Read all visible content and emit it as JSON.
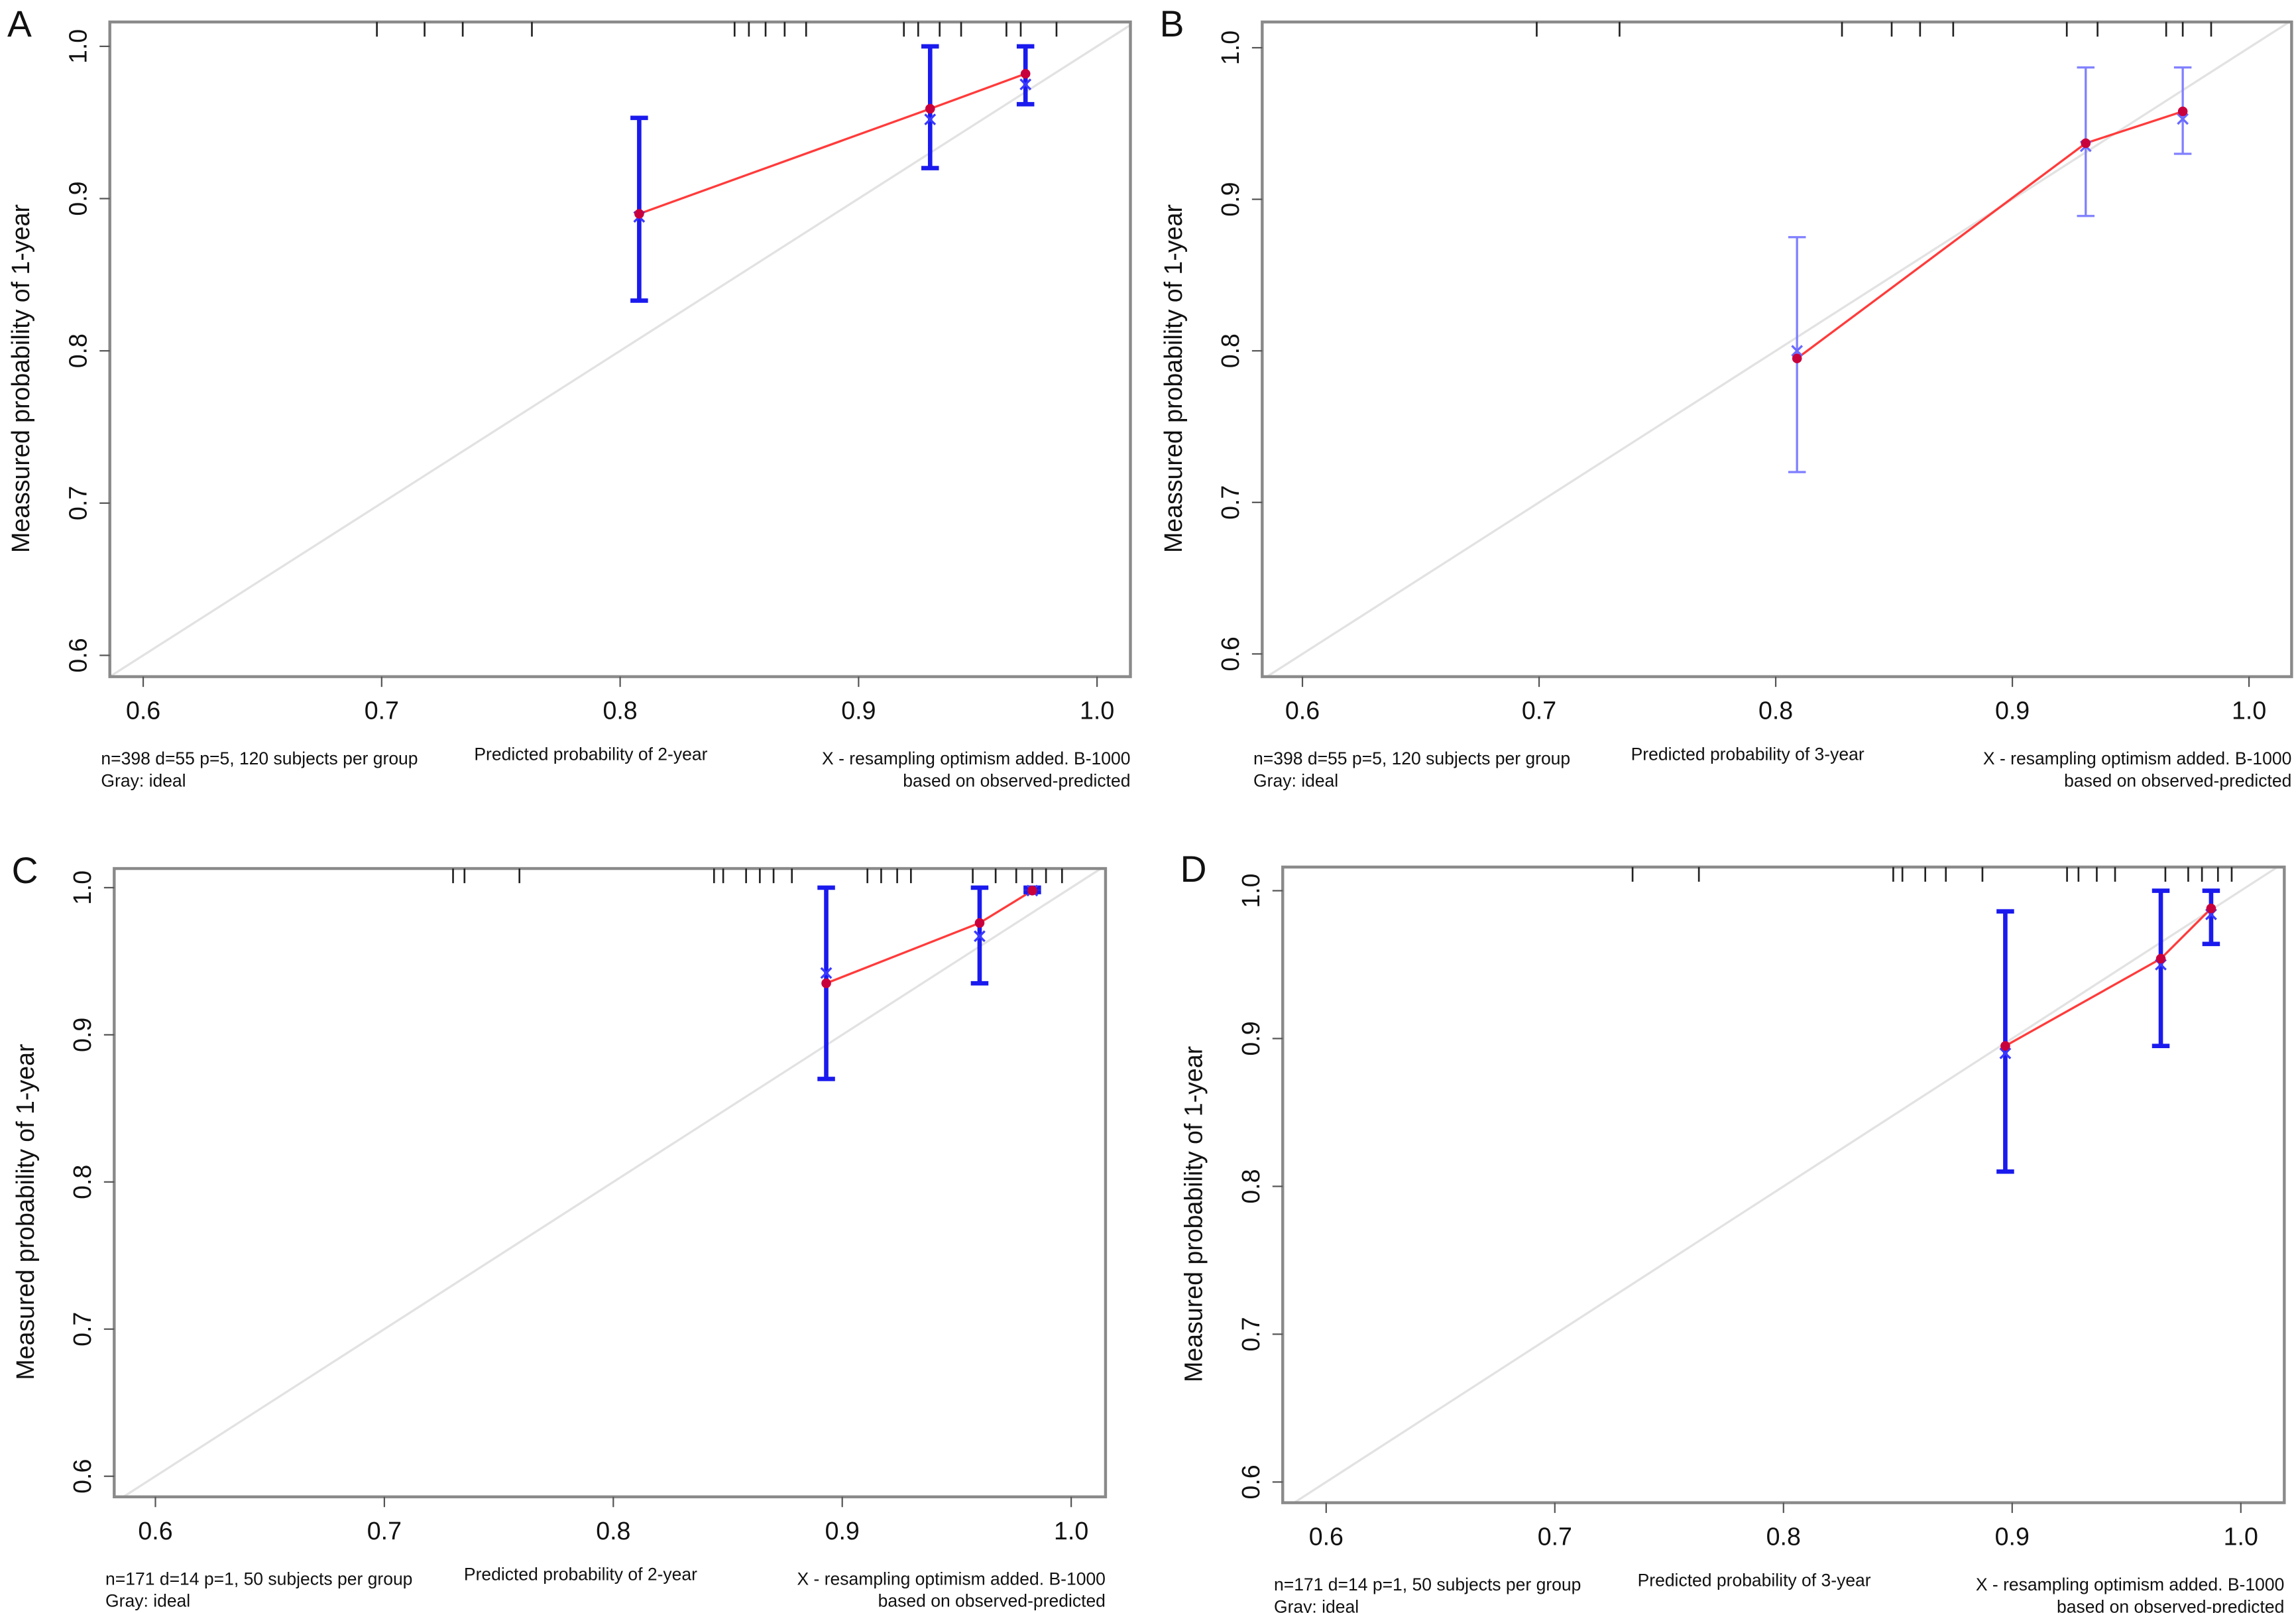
{
  "chart_data": [
    {
      "type": "line",
      "panel": "A",
      "ylabel": "Meassured probability of 1-year",
      "xlabel": "Predicted probability of 2-year",
      "note_left": [
        "n=398 d=55 p=5, 120 subjects per group",
        "Gray: ideal"
      ],
      "note_right": [
        "X - resampling optimism added. B-1000",
        "based on observed-predicted"
      ],
      "xlim": [
        0.586,
        1.014
      ],
      "ylim": [
        0.586,
        1.016
      ],
      "xticks": [
        0.6,
        0.7,
        0.8,
        0.9,
        {
          "value": 1,
          "label": "1.0"
        }
      ],
      "yticks": [
        0.6,
        0.7,
        0.8,
        0.9,
        {
          "value": 1,
          "label": "1.0"
        }
      ],
      "x": [
        0.808,
        0.93,
        0.97
      ],
      "values": [
        0.89,
        0.959,
        0.982
      ],
      "lower": [
        0.833,
        0.92,
        0.962
      ],
      "upper": [
        0.953,
        1.0,
        1.0
      ],
      "corrected": [
        0.888,
        0.952,
        0.975
      ],
      "rug": [
        0.698,
        0.718,
        0.734,
        0.763,
        0.848,
        0.854,
        0.861,
        0.869,
        0.878,
        0.919,
        0.925,
        0.934,
        0.943,
        0.962,
        0.968,
        0.983
      ],
      "color": "#ff3b3b",
      "point_color": "#c8003c",
      "corrected_color": "#3a3aff",
      "errorbar_color": "#1a1aee",
      "ideal_color": "#e2e2e2"
    },
    {
      "type": "line",
      "panel": "B",
      "ylabel": "Meassured probability of 1-year",
      "xlabel": "Predicted probability of 3-year",
      "note_left": [
        "n=398 d=55 p=5, 120 subjects per group",
        "Gray: ideal"
      ],
      "note_right": [
        "X - resampling optimism added. B-1000",
        "based on observed-predicted"
      ],
      "xlim": [
        0.583,
        1.018
      ],
      "ylim": [
        0.585,
        1.017
      ],
      "xticks": [
        0.6,
        0.7,
        0.8,
        0.9,
        {
          "value": 1,
          "label": "1.0"
        }
      ],
      "yticks": [
        0.6,
        0.7,
        0.8,
        0.9,
        {
          "value": 1,
          "label": "1.0"
        }
      ],
      "x": [
        0.809,
        0.931,
        0.972
      ],
      "values": [
        0.795,
        0.937,
        0.958
      ],
      "lower": [
        0.72,
        0.889,
        0.93
      ],
      "upper": [
        0.875,
        0.987,
        0.987
      ],
      "corrected": [
        0.8,
        0.935,
        0.953
      ],
      "rug": [
        0.699,
        0.734,
        0.828,
        0.849,
        0.861,
        0.875,
        0.923,
        0.936,
        0.965,
        0.972,
        0.984
      ],
      "color": "#ff3b3b",
      "point_color": "#c8003c",
      "corrected_color": "#6a6aff",
      "errorbar_color": "#8080ff",
      "ideal_color": "#e2e2e2"
    },
    {
      "type": "line",
      "panel": "C",
      "ylabel": "Measured probability of 1-year",
      "xlabel": "Predicted probability of 2-year",
      "note_left": [
        "n=171 d=14 p=1, 50 subjects per group",
        "Gray: ideal"
      ],
      "note_right": [
        "X - resampling optimism added. B-1000",
        "based on observed-predicted"
      ],
      "xlim": [
        0.582,
        1.015
      ],
      "ylim": [
        0.586,
        1.013
      ],
      "xticks": [
        0.6,
        0.7,
        0.8,
        0.9,
        {
          "value": 1,
          "label": "1.0"
        }
      ],
      "yticks": [
        0.6,
        0.7,
        0.8,
        0.9,
        {
          "value": 1,
          "label": "1.0"
        }
      ],
      "x": [
        0.893,
        0.96,
        0.983
      ],
      "values": [
        0.935,
        0.976,
        0.998
      ],
      "lower": [
        0.87,
        0.935,
        0.997
      ],
      "upper": [
        1.0,
        1.0,
        1.0
      ],
      "corrected": [
        0.942,
        0.967,
        0.998
      ],
      "rug": [
        0.73,
        0.735,
        0.759,
        0.844,
        0.848,
        0.858,
        0.864,
        0.87,
        0.878,
        0.911,
        0.917,
        0.924,
        0.93,
        0.957,
        0.967,
        0.976,
        0.983,
        0.989,
        0.996
      ],
      "color": "#ff3b3b",
      "point_color": "#c8003c",
      "corrected_color": "#3a3aff",
      "errorbar_color": "#1a1aee",
      "ideal_color": "#e2e2e2"
    },
    {
      "type": "line",
      "panel": "D",
      "ylabel": "Measured probability of 1-year",
      "xlabel": "Predicted probability of 3-year",
      "note_left": [
        "n=171 d=14 p=1, 50 subjects per group",
        "Gray: ideal"
      ],
      "note_right": [
        "X - resampling optimism added. B-1000",
        "based on observed-predicted"
      ],
      "xlim": [
        0.581,
        1.019
      ],
      "ylim": [
        0.586,
        1.016
      ],
      "xticks": [
        0.6,
        0.7,
        0.8,
        0.9,
        {
          "value": 1,
          "label": "1.0"
        }
      ],
      "yticks": [
        0.6,
        0.7,
        0.8,
        0.9,
        {
          "value": 1,
          "label": "1.0"
        }
      ],
      "x": [
        0.897,
        0.965,
        0.987
      ],
      "values": [
        0.895,
        0.954,
        0.988
      ],
      "lower": [
        0.81,
        0.895,
        0.964
      ],
      "upper": [
        0.986,
        1.0,
        1.0
      ],
      "corrected": [
        0.89,
        0.95,
        0.984
      ],
      "rug": [
        0.734,
        0.763,
        0.848,
        0.852,
        0.862,
        0.871,
        0.887,
        0.924,
        0.929,
        0.937,
        0.945,
        0.967,
        0.977,
        0.983,
        0.99,
        0.996
      ],
      "color": "#ff3b3b",
      "point_color": "#c8003c",
      "corrected_color": "#3a3aff",
      "errorbar_color": "#1a1aee",
      "ideal_color": "#e2e2e2"
    }
  ]
}
